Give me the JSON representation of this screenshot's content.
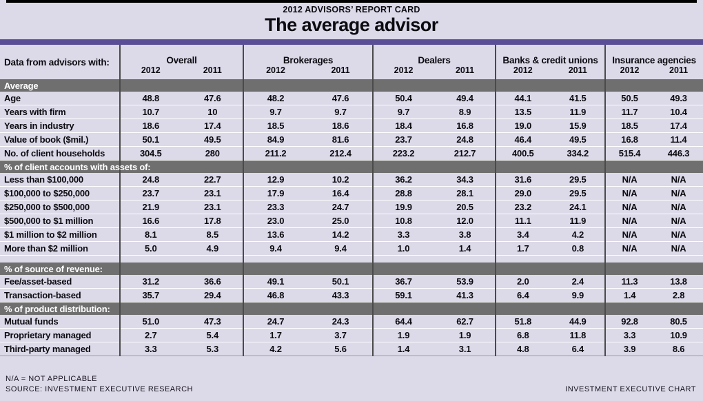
{
  "header": {
    "kicker": "2012 ADVISORS’ REPORT CARD",
    "title": "The average advisor"
  },
  "table": {
    "corner_label": "Data from advisors with:"
  },
  "footer": {
    "note": "N/A = NOT APPLICABLE",
    "source": "SOURCE: INVESTMENT EXECUTIVE RESEARCH",
    "credit": "INVESTMENT EXECUTIVE CHART"
  },
  "colors": {
    "background": "#dcd9e8",
    "accent_purple": "#5a4e96",
    "section_bar_gray": "#6f6f6f",
    "column_divider": "#4a4a4a",
    "row_separator": "#ffffff",
    "top_rule": "#000000"
  },
  "chart_data": {
    "type": "table",
    "title": "The average advisor",
    "subtitle": "2012 ADVISORS’ REPORT CARD",
    "column_groups": [
      "Overall",
      "Brokerages",
      "Dealers",
      "Banks & credit unions",
      "Insurance agencies"
    ],
    "year_columns": [
      "2012",
      "2011"
    ],
    "sections": [
      {
        "title": "Average",
        "rows": [
          {
            "label": "Age",
            "values": [
              "48.8",
              "47.6",
              "48.2",
              "47.6",
              "50.4",
              "49.4",
              "44.1",
              "41.5",
              "50.5",
              "49.3"
            ]
          },
          {
            "label": "Years with firm",
            "values": [
              "10.7",
              "10",
              "9.7",
              "9.7",
              "9.7",
              "8.9",
              "13.5",
              "11.9",
              "11.7",
              "10.4"
            ]
          },
          {
            "label": "Years in industry",
            "values": [
              "18.6",
              "17.4",
              "18.5",
              "18.6",
              "18.4",
              "16.8",
              "19.0",
              "15.9",
              "18.5",
              "17.4"
            ]
          },
          {
            "label": "Value of book ($mil.)",
            "values": [
              "50.1",
              "49.5",
              "84.9",
              "81.6",
              "23.7",
              "24.8",
              "46.4",
              "49.5",
              "16.8",
              "11.4"
            ]
          },
          {
            "label": "No. of client households",
            "values": [
              "304.5",
              "280",
              "211.2",
              "212.4",
              "223.2",
              "212.7",
              "400.5",
              "334.2",
              "515.4",
              "446.3"
            ]
          }
        ]
      },
      {
        "title": "% of client accounts with assets of:",
        "rows": [
          {
            "label": "Less than $100,000",
            "values": [
              "24.8",
              "22.7",
              "12.9",
              "10.2",
              "36.2",
              "34.3",
              "31.6",
              "29.5",
              "N/A",
              "N/A"
            ]
          },
          {
            "label": "$100,000 to $250,000",
            "values": [
              "23.7",
              "23.1",
              "17.9",
              "16.4",
              "28.8",
              "28.1",
              "29.0",
              "29.5",
              "N/A",
              "N/A"
            ]
          },
          {
            "label": "$250,000 to $500,000",
            "values": [
              "21.9",
              "23.1",
              "23.3",
              "24.7",
              "19.9",
              "20.5",
              "23.2",
              "24.1",
              "N/A",
              "N/A"
            ]
          },
          {
            "label": "$500,000 to $1 million",
            "values": [
              "16.6",
              "17.8",
              "23.0",
              "25.0",
              "10.8",
              "12.0",
              "11.1",
              "11.9",
              "N/A",
              "N/A"
            ]
          },
          {
            "label": "$1 million to $2 million",
            "values": [
              "8.1",
              "8.5",
              "13.6",
              "14.2",
              "3.3",
              "3.8",
              "3.4",
              "4.2",
              "N/A",
              "N/A"
            ]
          },
          {
            "label": "More than $2 million",
            "values": [
              "5.0",
              "4.9",
              "9.4",
              "9.4",
              "1.0",
              "1.4",
              "1.7",
              "0.8",
              "N/A",
              "N/A"
            ]
          }
        ]
      },
      {
        "title": "% of source of revenue:",
        "spacer_before": true,
        "rows": [
          {
            "label": "Fee/asset-based",
            "values": [
              "31.2",
              "36.6",
              "49.1",
              "50.1",
              "36.7",
              "53.9",
              "2.0",
              "2.4",
              "11.3",
              "13.8"
            ]
          },
          {
            "label": "Transaction-based",
            "values": [
              "35.7",
              "29.4",
              "46.8",
              "43.3",
              "59.1",
              "41.3",
              "6.4",
              "9.9",
              "1.4",
              "2.8"
            ]
          }
        ]
      },
      {
        "title": "% of product distribution:",
        "rows": [
          {
            "label": "Mutual funds",
            "values": [
              "51.0",
              "47.3",
              "24.7",
              "24.3",
              "64.4",
              "62.7",
              "51.8",
              "44.9",
              "92.8",
              "80.5"
            ]
          },
          {
            "label": "Proprietary managed",
            "values": [
              "2.7",
              "5.4",
              "1.7",
              "3.7",
              "1.9",
              "1.9",
              "6.8",
              "11.8",
              "3.3",
              "10.9"
            ]
          },
          {
            "label": "Third-party managed",
            "values": [
              "3.3",
              "5.3",
              "4.2",
              "5.6",
              "1.4",
              "3.1",
              "4.8",
              "6.4",
              "3.9",
              "8.6"
            ]
          }
        ]
      }
    ]
  }
}
